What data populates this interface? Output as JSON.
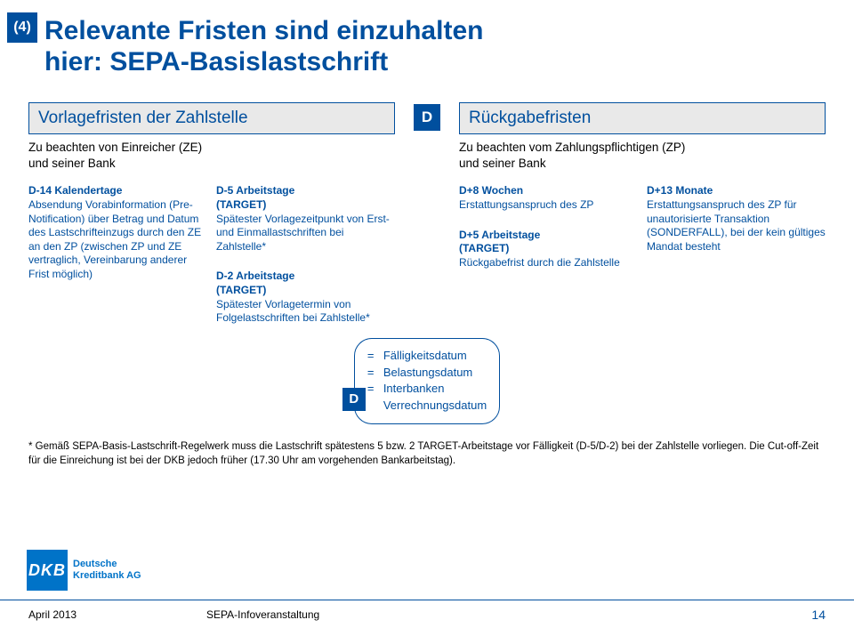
{
  "colors": {
    "brand": "#004f9e",
    "logo": "#0073c8",
    "headbox_bg": "#e9e9e9",
    "text": "#000000",
    "bg": "#ffffff"
  },
  "badge": "(4)",
  "title_line1": "Relevante Fristen sind einzuhalten",
  "title_line2": "hier: SEPA-Basislastschrift",
  "left": {
    "header": "Vorlagefristen der Zahlstelle",
    "sub1": "Zu beachten von Einreicher (ZE)",
    "sub2": "und seiner Bank",
    "box_d14_title": "D-14 Kalendertage",
    "box_d14_body": "Absendung Vorabinformation (Pre-Notification) über Betrag und Datum des Lastschrifteinzugs durch den ZE an den ZP (zwischen ZP und ZE vertraglich, Vereinbarung anderer Frist möglich)",
    "box_d5_title": "D-5 Arbeitstage",
    "box_d5_title2": "(TARGET)",
    "box_d5_body": "Spätester Vorlagezeitpunkt von Erst- und Einmallastschriften bei Zahlstelle*",
    "box_d2_title": "D-2 Arbeitstage",
    "box_d2_title2": "(TARGET)",
    "box_d2_body": "Spätester Vorlagetermin von Folgelastschriften bei Zahlstelle*"
  },
  "mid": {
    "d": "D"
  },
  "right": {
    "header": "Rückgabefristen",
    "sub1": "Zu beachten vom Zahlungspflichtigen (ZP)",
    "sub2": "und seiner Bank",
    "box_d5p_title": "D+5 Arbeitstage",
    "box_d5p_title2": "(TARGET)",
    "box_d5p_body": "Rückgabefrist durch die Zahlstelle",
    "box_d8w_title": "D+8 Wochen",
    "box_d8w_body": "Erstattungsanspruch des ZP",
    "box_d13m_title": "D+13 Monate",
    "box_d13m_body": "Erstattungsanspruch des ZP für unautorisierte Transaktion (SONDERFALL), bei der kein gültiges Mandat besteht"
  },
  "bubble": {
    "eq": "=",
    "l1": "Fälligkeitsdatum",
    "l2": "Belastungsdatum",
    "l3a": "Interbanken",
    "l3b": "Verrechnungsdatum",
    "d": "D"
  },
  "footnote": "* Gemäß SEPA-Basis-Lastschrift-Regelwerk muss die Lastschrift spätestens 5 bzw. 2 TARGET-Arbeitstage vor Fälligkeit (D-5/D-2) bei der Zahlstelle vorliegen. Die Cut-off-Zeit für die Einreichung ist bei der DKB jedoch früher (17.30 Uhr am vorgehenden Bankarbeitstag).",
  "logo": {
    "abbr": "DKB",
    "line1": "Deutsche",
    "line2": "Kreditbank AG"
  },
  "footer": {
    "left": "April 2013",
    "mid": "SEPA-Infoveranstaltung",
    "page": "14"
  }
}
